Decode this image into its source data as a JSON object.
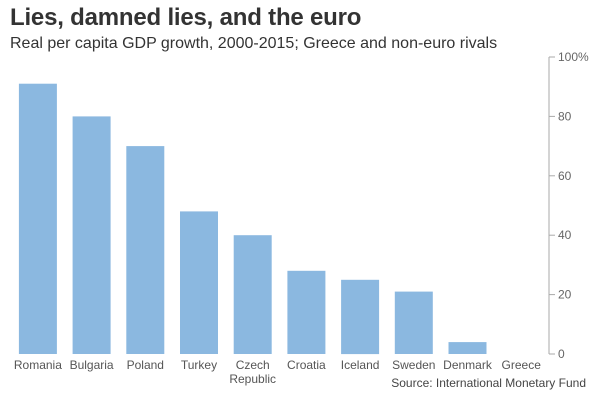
{
  "chart_data": {
    "type": "bar",
    "title": "Lies, damned lies, and the euro",
    "subtitle": "Real per capita GDP growth, 2000-2015; Greece and non-euro rivals",
    "source": "Source: International Monetary Fund",
    "categories": [
      "Romania",
      "Bulgaria",
      "Poland",
      "Turkey",
      "Czech Republic",
      "Croatia",
      "Iceland",
      "Sweden",
      "Denmark",
      "Greece"
    ],
    "category_lines": [
      [
        "Romania"
      ],
      [
        "Bulgaria"
      ],
      [
        "Poland"
      ],
      [
        "Turkey"
      ],
      [
        "Czech",
        "Republic"
      ],
      [
        "Croatia"
      ],
      [
        "Iceland"
      ],
      [
        "Sweden"
      ],
      [
        "Denmark"
      ],
      [
        "Greece"
      ]
    ],
    "values": [
      91,
      80,
      70,
      48,
      40,
      28,
      25,
      21,
      4,
      0
    ],
    "ylim": [
      0,
      100
    ],
    "yticks": [
      0,
      20,
      40,
      60,
      80,
      100
    ],
    "ytick_labels": [
      "0",
      "20",
      "40",
      "60",
      "80",
      "100%"
    ],
    "y_axis_side": "right",
    "grid": false,
    "bar_color": "#8bb8e0",
    "xlabel": "",
    "ylabel": ""
  }
}
